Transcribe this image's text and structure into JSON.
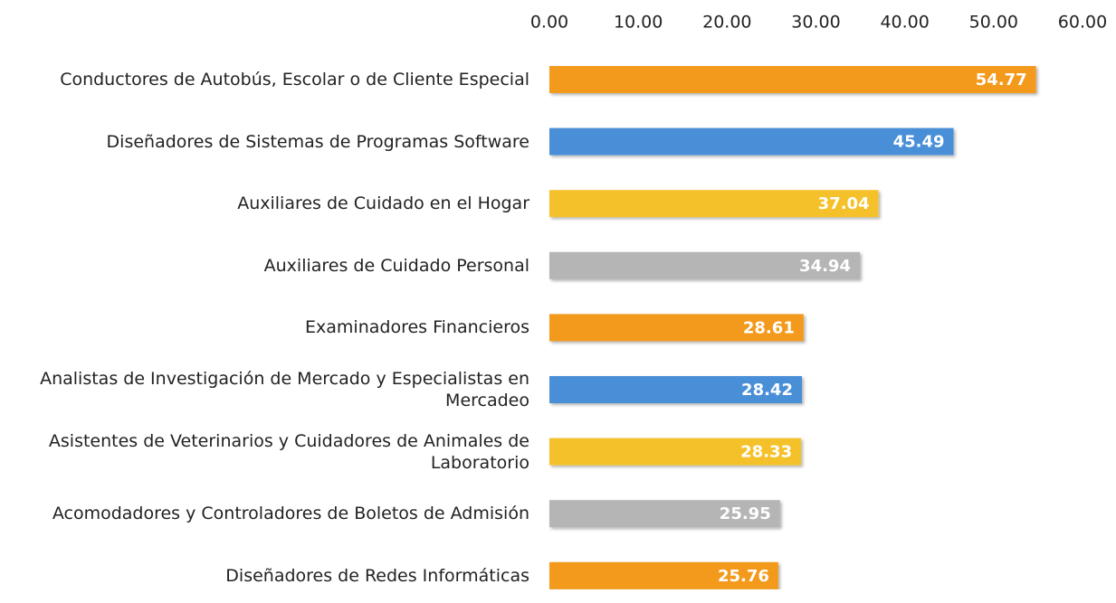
{
  "chart_data": {
    "type": "hbar",
    "categories": [
      "Conductores de Autobús, Escolar o de Cliente Especial",
      "Diseñadores de Sistemas de Programas Software",
      "Auxiliares de Cuidado en el Hogar",
      "Auxiliares de Cuidado Personal",
      "Examinadores Financieros",
      "Analistas de Investigación de Mercado y Especialistas en Mercadeo",
      "Asistentes de Veterinarios y Cuidadores de Animales de Laboratorio",
      "Acomodadores y Controladores de Boletos de Admisión",
      "Diseñadores de Redes Informáticas"
    ],
    "values": [
      54.77,
      45.49,
      37.04,
      34.94,
      28.61,
      28.42,
      28.33,
      25.95,
      25.76
    ],
    "colors": [
      "#f39a1e",
      "#4a8fd8",
      "#f5c12c",
      "#b5b5b5",
      "#f39a1e",
      "#4a8fd8",
      "#f5c12c",
      "#b5b5b5",
      "#f39a1e"
    ],
    "xlim": [
      0,
      60
    ],
    "xticks": [
      {
        "value": 0,
        "label": "0.00"
      },
      {
        "value": 10,
        "label": "10.00"
      },
      {
        "value": 20,
        "label": "20.00"
      },
      {
        "value": 30,
        "label": "30.00"
      },
      {
        "value": 40,
        "label": "40.00"
      },
      {
        "value": 50,
        "label": "50.00"
      },
      {
        "value": 60,
        "label": "60.00"
      }
    ],
    "axis_position": "top",
    "grid": false
  }
}
